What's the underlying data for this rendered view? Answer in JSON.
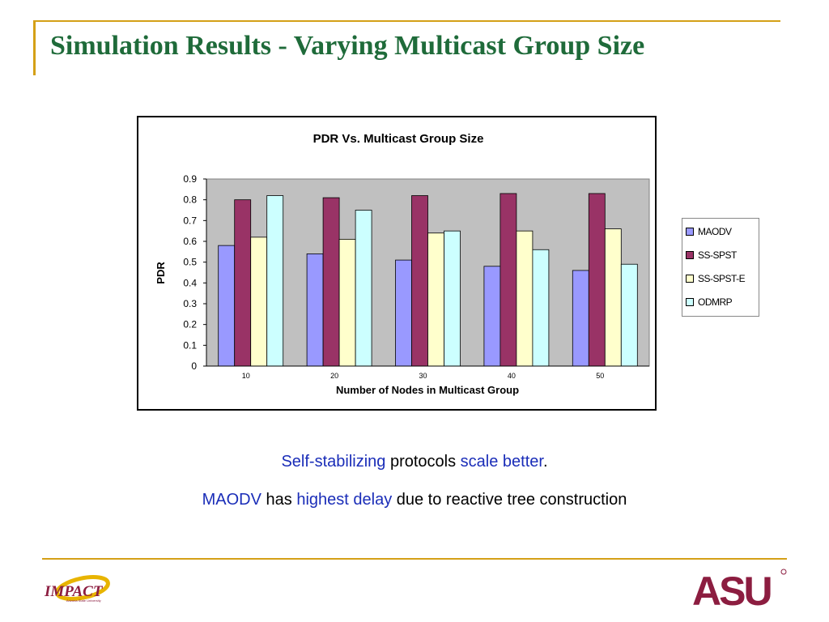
{
  "slide": {
    "title": "Simulation Results - Varying Multicast Group Size"
  },
  "chart_data": {
    "type": "bar",
    "title": "PDR Vs. Multicast Group Size",
    "xlabel": "Number of Nodes in Multicast Group",
    "ylabel": "PDR",
    "categories": [
      "10",
      "20",
      "30",
      "40",
      "50"
    ],
    "ylim": [
      0,
      0.9
    ],
    "yticks": [
      "0",
      "0.1",
      "0.2",
      "0.3",
      "0.4",
      "0.5",
      "0.6",
      "0.7",
      "0.8",
      "0.9"
    ],
    "grid": false,
    "legend_position": "right",
    "series": [
      {
        "name": "MAODV",
        "color": "#9999ff",
        "values": [
          0.58,
          0.54,
          0.51,
          0.48,
          0.46
        ]
      },
      {
        "name": "SS-SPST",
        "color": "#993366",
        "values": [
          0.8,
          0.81,
          0.82,
          0.83,
          0.83
        ]
      },
      {
        "name": "SS-SPST-E",
        "color": "#ffffcc",
        "values": [
          0.62,
          0.61,
          0.64,
          0.65,
          0.66
        ]
      },
      {
        "name": "ODMRP",
        "color": "#ccffff",
        "values": [
          0.82,
          0.75,
          0.65,
          0.56,
          0.49
        ]
      }
    ],
    "plot_background": "#c0c0c0"
  },
  "captions": {
    "line1": {
      "part1": "Self-stabilizing",
      "part2": " protocols ",
      "part3": "scale better",
      "part4": "."
    },
    "line2": {
      "part1": "MAODV",
      "part2": " has ",
      "part3": "highest delay",
      "part4": " due to reactive tree construction"
    }
  },
  "logos": {
    "impact": "IMPACT",
    "impact_sub": "Arizona State University",
    "asu": "ASU"
  },
  "colors": {
    "title_green": "#1f6b3a",
    "rule_gold": "#d4a017",
    "highlight_blue": "#1a2db8",
    "asu_maroon": "#8c1d40"
  }
}
